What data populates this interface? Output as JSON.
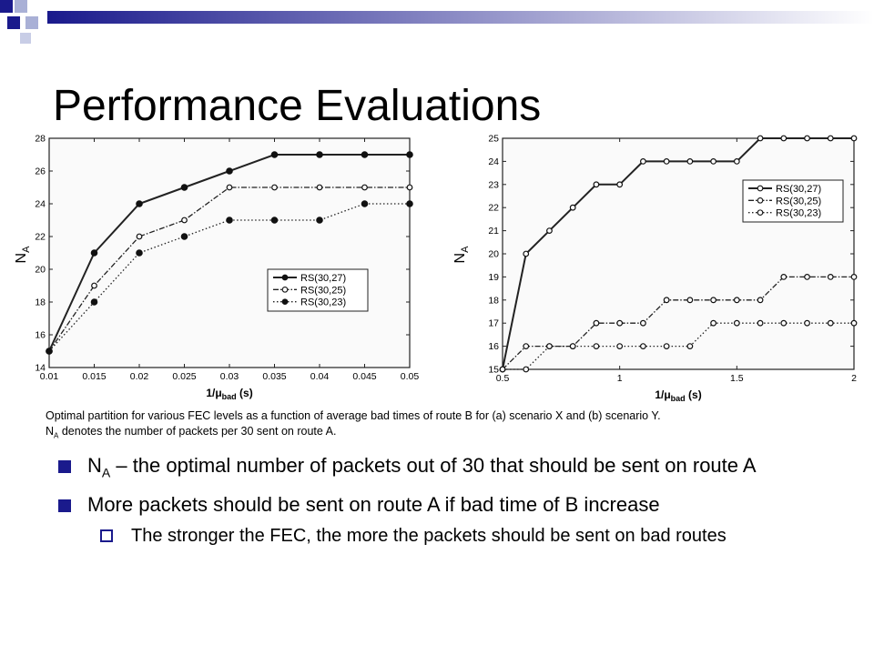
{
  "theme": {
    "accent": "#1a1a8c",
    "deco_light": "#a9b0d6",
    "bar_gradient": [
      "#1a1a8c",
      "#ffffff"
    ]
  },
  "slide": {
    "title": "Performance Evaluations"
  },
  "caption": {
    "line1": "Optimal partition for various FEC levels as a function of average bad times of route B for (a) scenario X and (b) scenario Y.",
    "sym": "N",
    "sub": "A",
    "line2": " denotes the number of packets per 30 sent on route A."
  },
  "bullets": [
    {
      "prefix": "N",
      "sub": "A",
      "text": " – the optimal number of packets out of 30 that should be sent on route A"
    },
    {
      "prefix": "",
      "sub": "",
      "text": "More packets should be sent on route A if bad time of B increase"
    }
  ],
  "subbullets": [
    {
      "text": "The stronger the FEC, the more the packets should be sent on bad routes"
    }
  ],
  "chart_data": [
    {
      "type": "line",
      "ylabel_main": "N",
      "ylabel_sub": "A",
      "xlabel_pre": "1/μ",
      "xlabel_sub": "bad",
      "xlabel_post": " (s)",
      "x": [
        0.01,
        0.015,
        0.02,
        0.025,
        0.03,
        0.035,
        0.04,
        0.045,
        0.05
      ],
      "x_ticks": [
        "0.01",
        "0.015",
        "0.02",
        "0.025",
        "0.03",
        "0.035",
        "0.04",
        "0.045",
        "0.05"
      ],
      "xlim": [
        0.01,
        0.05
      ],
      "ylim": [
        14,
        28
      ],
      "y_ticks": [
        14,
        16,
        18,
        20,
        22,
        24,
        26,
        28
      ],
      "legend_position": "center-right",
      "series": [
        {
          "name": "RS(30,27)",
          "style": "solid",
          "marker": "filled",
          "values": [
            15,
            21,
            24,
            25,
            26,
            27,
            27,
            27,
            27
          ]
        },
        {
          "name": "RS(30,25)",
          "style": "dashdot",
          "marker": "open",
          "values": [
            15,
            19,
            22,
            23,
            25,
            25,
            25,
            25,
            25
          ]
        },
        {
          "name": "RS(30,23)",
          "style": "dotted",
          "marker": "filled",
          "values": [
            15,
            18,
            21,
            22,
            23,
            23,
            23,
            24,
            24
          ]
        }
      ]
    },
    {
      "type": "line",
      "ylabel_main": "N",
      "ylabel_sub": "A",
      "xlabel_pre": "1/μ",
      "xlabel_sub": "bad",
      "xlabel_post": " (s)",
      "x": [
        0.5,
        0.6,
        0.7,
        0.8,
        0.9,
        1.0,
        1.1,
        1.2,
        1.3,
        1.4,
        1.5,
        1.6,
        1.7,
        1.8,
        1.9,
        2.0
      ],
      "x_ticks": [
        "0.5",
        "1",
        "1.5",
        "2"
      ],
      "x_tick_values": [
        0.5,
        1,
        1.5,
        2
      ],
      "xlim": [
        0.5,
        2
      ],
      "ylim": [
        15,
        25
      ],
      "y_ticks": [
        15,
        16,
        17,
        18,
        19,
        20,
        21,
        22,
        23,
        24,
        25
      ],
      "legend_position": "top-right",
      "series": [
        {
          "name": "RS(30,27)",
          "style": "solid",
          "marker": "open",
          "values": [
            15,
            20,
            21,
            22,
            23,
            23,
            24,
            24,
            24,
            24,
            24,
            25,
            25,
            25,
            25,
            25
          ]
        },
        {
          "name": "RS(30,25)",
          "style": "dashdot",
          "marker": "open",
          "values": [
            15,
            16,
            16,
            16,
            17,
            17,
            17,
            18,
            18,
            18,
            18,
            18,
            19,
            19,
            19,
            19
          ]
        },
        {
          "name": "RS(30,23)",
          "style": "dotted",
          "marker": "open",
          "values": [
            15,
            15,
            16,
            16,
            16,
            16,
            16,
            16,
            16,
            17,
            17,
            17,
            17,
            17,
            17,
            17
          ]
        }
      ]
    }
  ]
}
